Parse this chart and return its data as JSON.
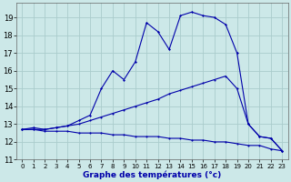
{
  "xlabel": "Graphe des températures (°c)",
  "x_ticks": [
    0,
    1,
    2,
    3,
    4,
    5,
    6,
    7,
    8,
    9,
    10,
    11,
    12,
    13,
    14,
    15,
    16,
    17,
    18,
    19,
    20,
    21,
    22,
    23
  ],
  "y_ticks": [
    11,
    12,
    13,
    14,
    15,
    16,
    17,
    18,
    19
  ],
  "xlim": [
    -0.5,
    23.5
  ],
  "ylim": [
    11.0,
    19.8
  ],
  "background_color": "#cce8e8",
  "grid_color": "#aacccc",
  "line_color": "#0000aa",
  "series": {
    "line1_x": [
      0,
      1,
      2,
      3,
      4,
      5,
      6,
      7,
      8,
      9,
      10,
      11,
      12,
      13,
      14,
      15,
      16,
      17,
      18,
      19,
      20,
      21,
      22,
      23
    ],
    "line1_y": [
      12.7,
      12.7,
      12.6,
      12.6,
      12.6,
      12.5,
      12.5,
      12.5,
      12.4,
      12.4,
      12.3,
      12.3,
      12.3,
      12.2,
      12.2,
      12.1,
      12.1,
      12.0,
      12.0,
      11.9,
      11.8,
      11.8,
      11.6,
      11.5
    ],
    "line2_x": [
      0,
      1,
      2,
      3,
      4,
      5,
      6,
      7,
      8,
      9,
      10,
      11,
      12,
      13,
      14,
      15,
      16,
      17,
      18,
      19,
      20,
      21,
      22,
      23
    ],
    "line2_y": [
      12.7,
      12.7,
      12.7,
      12.8,
      12.9,
      13.0,
      13.2,
      13.4,
      13.6,
      13.8,
      14.0,
      14.2,
      14.4,
      14.7,
      14.9,
      15.1,
      15.3,
      15.5,
      15.7,
      15.0,
      13.0,
      12.3,
      12.2,
      11.5
    ],
    "line3_x": [
      0,
      1,
      2,
      3,
      4,
      5,
      6,
      7,
      8,
      9,
      10,
      11,
      12,
      13,
      14,
      15,
      16,
      17,
      18,
      19,
      20,
      21,
      22,
      23
    ],
    "line3_y": [
      12.7,
      12.8,
      12.7,
      12.8,
      12.9,
      13.2,
      13.5,
      15.0,
      16.0,
      15.5,
      16.5,
      18.7,
      18.2,
      17.2,
      19.1,
      19.3,
      19.1,
      19.0,
      18.6,
      17.0,
      13.0,
      12.3,
      12.2,
      11.5
    ]
  }
}
